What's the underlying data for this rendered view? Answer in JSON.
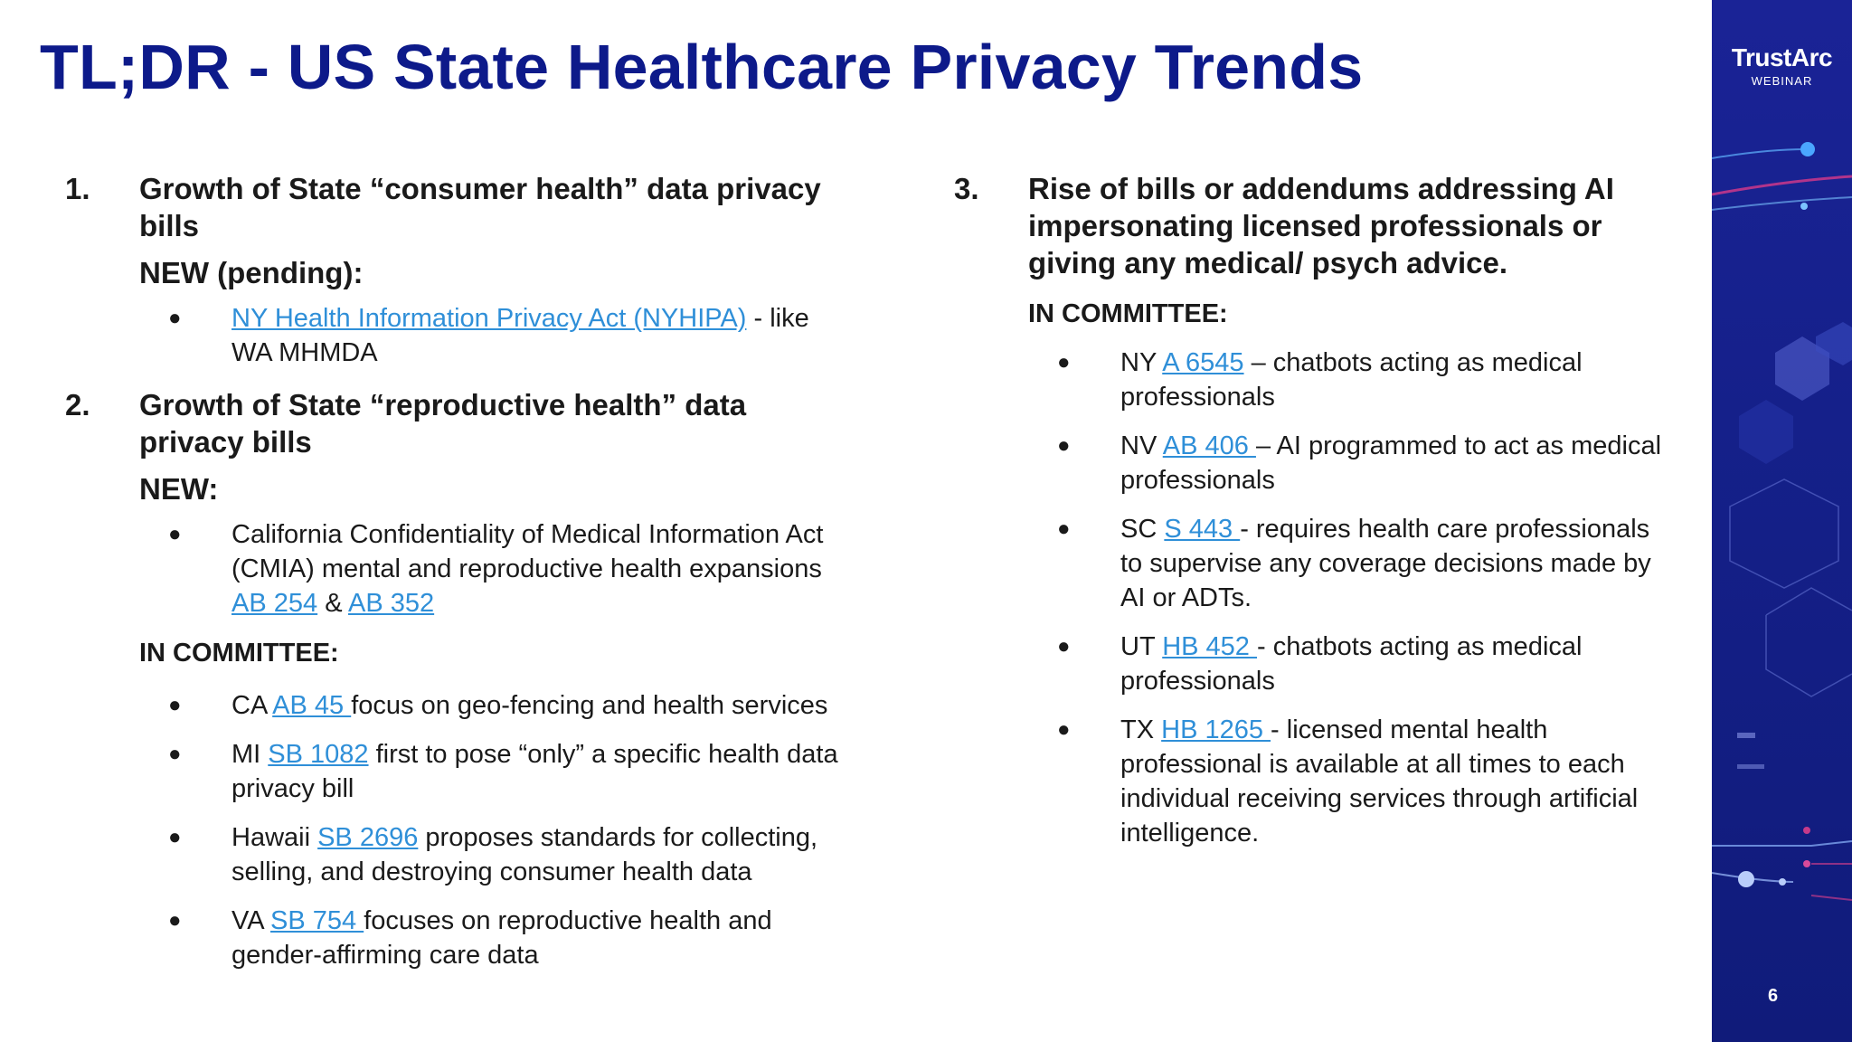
{
  "title": "TL;DR - US State Healthcare Privacy Trends",
  "logo": {
    "name": "TrustArc",
    "sub": "WEBINAR"
  },
  "page_number": "6",
  "colors": {
    "title": "#0d1a8a",
    "link": "#2f8fd8",
    "sidebar": "#15208a"
  },
  "left": {
    "item1": {
      "num": "1.",
      "heading": "Growth of State “consumer health” data privacy bills",
      "sub": "NEW (pending):",
      "bullets": [
        {
          "link": "NY Health Information Privacy Act (NYHIPA)",
          "after": " - like WA MHMDA"
        }
      ]
    },
    "item2": {
      "num": "2.",
      "heading": "Growth of State “reproductive health” data privacy bills",
      "sub": "NEW:",
      "cmia": {
        "before": "California Confidentiality of Medical Information Act (CMIA) mental and reproductive health expansions ",
        "link1": "AB 254",
        "mid": " & ",
        "link2": "AB 352"
      },
      "committee": "IN COMMITTEE:",
      "bullets": [
        {
          "before": "CA ",
          "link": "AB 45 ",
          "after": " focus on geo-fencing and health services"
        },
        {
          "before": "MI ",
          "link": "SB 1082",
          "after": " first to pose “only” a specific health data privacy bill"
        },
        {
          "before": "Hawaii ",
          "link": "SB 2696",
          "after": " proposes standards for collecting, selling, and destroying consumer health data"
        },
        {
          "before": "VA ",
          "link": "SB 754 ",
          "after": " focuses on reproductive health and gender-affirming care data"
        }
      ]
    }
  },
  "right": {
    "item3": {
      "num": "3.",
      "heading": "Rise of bills or addendums addressing AI impersonating licensed professionals or giving any medical/ psych advice.",
      "committee": "IN COMMITTEE:",
      "bullets": [
        {
          "before": "NY ",
          "link": "A 6545",
          "after": " – chatbots acting as medical professionals"
        },
        {
          "before": "NV ",
          "link": "AB 406 ",
          "after": "– AI programmed to act as medical professionals"
        },
        {
          "before": "SC ",
          "link": "S 443 ",
          "after": "- requires health care professionals to supervise any coverage decisions made by AI or ADTs."
        },
        {
          "before": "UT ",
          "link": "HB 452 ",
          "after": "- chatbots acting as medical professionals"
        },
        {
          "before": "TX ",
          "link": "HB 1265 ",
          "after": "- licensed mental health professional is available at all times to each individual receiving services through artificial intelligence."
        }
      ]
    }
  }
}
